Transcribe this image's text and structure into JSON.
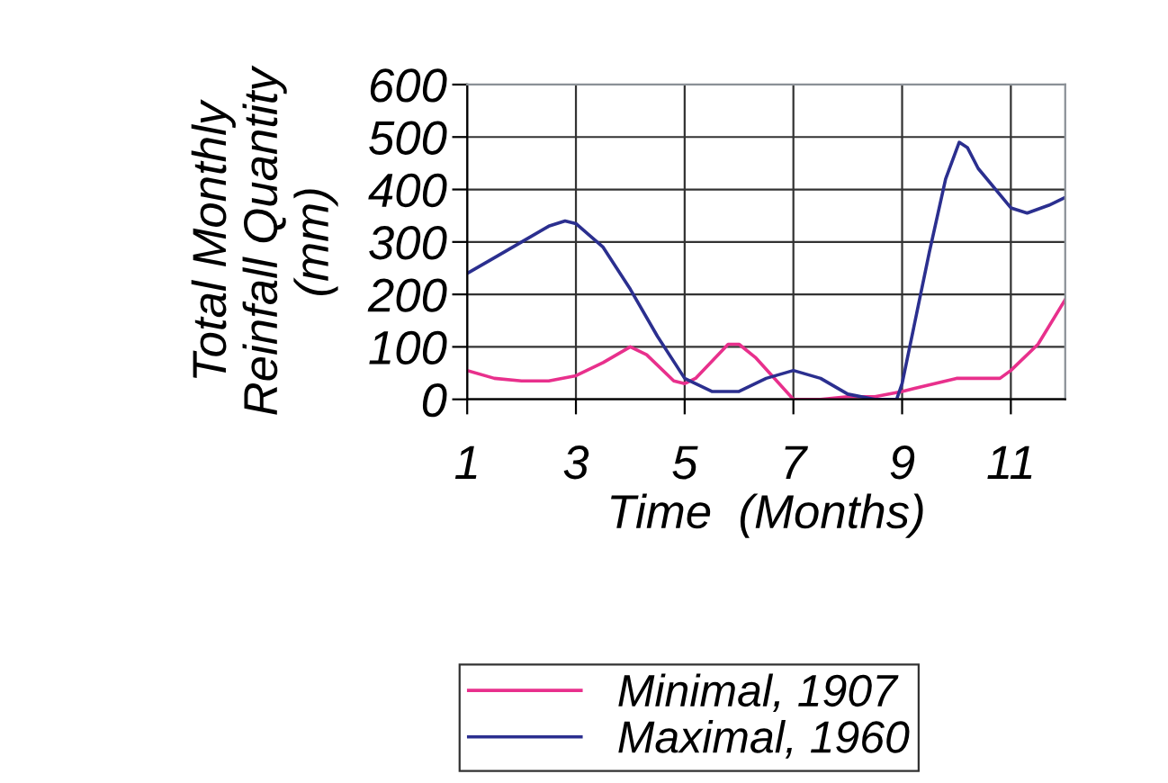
{
  "chart_data": {
    "type": "line",
    "xlabel": "Time  (Months)",
    "ylabel": "Total Monthly\nReinfall Quantity\n(mm)",
    "xlim": [
      1,
      12
    ],
    "xticks": [
      1,
      3,
      5,
      7,
      9,
      11
    ],
    "ylim": [
      0,
      600
    ],
    "yticks": [
      0,
      100,
      200,
      300,
      400,
      500,
      600
    ],
    "grid": true,
    "legend": "bottom",
    "marker": "none",
    "line_style": "solid",
    "series": [
      {
        "name": "Minimal, 1907",
        "color": "#e8308c",
        "x": [
          1,
          1.5,
          2,
          2.5,
          3,
          3.5,
          4,
          4.3,
          4.8,
          5,
          5.2,
          5.8,
          6,
          6.3,
          7,
          7.2,
          7.5,
          8,
          8.5,
          9,
          10,
          10.8,
          11,
          11.5,
          12
        ],
        "values": [
          55,
          40,
          35,
          35,
          45,
          70,
          100,
          85,
          35,
          30,
          40,
          105,
          105,
          80,
          0,
          0,
          0,
          5,
          5,
          15,
          40,
          40,
          55,
          105,
          190
        ]
      },
      {
        "name": "Maximal, 1960",
        "color": "#2b2f8f",
        "x": [
          1,
          1.5,
          2,
          2.5,
          2.8,
          3,
          3.5,
          4,
          4.5,
          5,
          5.5,
          6,
          6.5,
          7,
          7.5,
          8,
          8.5,
          8.9,
          9,
          9.5,
          9.8,
          10.05,
          10.2,
          10.4,
          11,
          11.3,
          11.7,
          12
        ],
        "values": [
          240,
          270,
          300,
          330,
          340,
          335,
          290,
          210,
          120,
          40,
          15,
          15,
          40,
          55,
          40,
          10,
          0,
          0,
          30,
          280,
          420,
          490,
          480,
          440,
          365,
          355,
          370,
          385
        ]
      }
    ]
  }
}
